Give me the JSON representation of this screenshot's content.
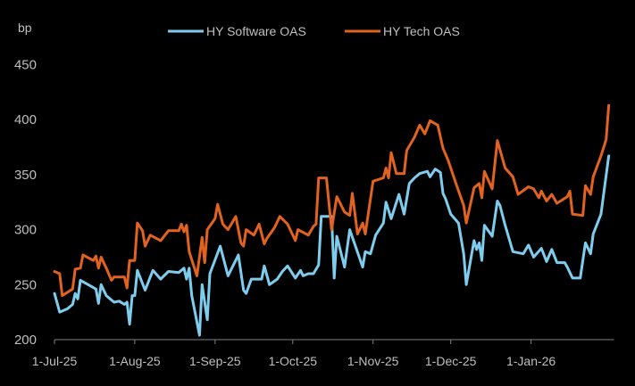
{
  "chart_data": {
    "type": "line",
    "title": "",
    "ylabel": "bp",
    "xlabel": "",
    "x_unit": "days since 1-Jul-25",
    "ylim": [
      200,
      450
    ],
    "yticks": [
      200,
      250,
      300,
      350,
      400,
      450
    ],
    "xticks": [
      {
        "day": 0,
        "label": "1-Jul-25"
      },
      {
        "day": 31,
        "label": "1-Aug-25"
      },
      {
        "day": 62,
        "label": "1-Sep-25"
      },
      {
        "day": 92,
        "label": "1-Oct-25"
      },
      {
        "day": 123,
        "label": "1-Nov-25"
      },
      {
        "day": 153,
        "label": "1-Dec-25"
      },
      {
        "day": 184,
        "label": "1-Jan-26"
      }
    ],
    "xlim": [
      0,
      215
    ],
    "grid": false,
    "legend_position": "top-center",
    "series": [
      {
        "name": "HY Software OAS",
        "color": "#7fcdee",
        "points": [
          [
            0,
            242
          ],
          [
            2,
            225
          ],
          [
            5,
            228
          ],
          [
            7,
            232
          ],
          [
            8,
            242
          ],
          [
            9,
            237
          ],
          [
            10,
            254
          ],
          [
            13,
            250
          ],
          [
            16,
            246
          ],
          [
            17,
            233
          ],
          [
            18,
            250
          ],
          [
            20,
            240
          ],
          [
            23,
            234
          ],
          [
            25,
            235
          ],
          [
            27,
            232
          ],
          [
            28,
            234
          ],
          [
            29,
            214
          ],
          [
            30,
            240
          ],
          [
            31,
            240
          ],
          [
            32,
            263
          ],
          [
            35,
            245
          ],
          [
            38,
            263
          ],
          [
            41,
            255
          ],
          [
            44,
            262
          ],
          [
            48,
            261
          ],
          [
            50,
            265
          ],
          [
            51,
            255
          ],
          [
            52,
            265
          ],
          [
            53,
            240
          ],
          [
            56,
            204
          ],
          [
            57,
            250
          ],
          [
            59,
            218
          ],
          [
            60,
            260
          ],
          [
            64,
            285
          ],
          [
            67,
            258
          ],
          [
            71,
            277
          ],
          [
            73,
            245
          ],
          [
            74,
            242
          ],
          [
            76,
            255
          ],
          [
            80,
            255
          ],
          [
            81,
            267
          ],
          [
            83,
            250
          ],
          [
            86,
            255
          ],
          [
            88,
            262
          ],
          [
            90,
            267
          ],
          [
            93,
            256
          ],
          [
            95,
            263
          ],
          [
            96,
            258
          ],
          [
            98,
            260
          ],
          [
            100,
            260
          ],
          [
            102,
            268
          ],
          [
            103,
            312
          ],
          [
            105,
            312
          ],
          [
            107,
            312
          ],
          [
            108,
            256
          ],
          [
            109,
            294
          ],
          [
            112,
            266
          ],
          [
            114,
            300
          ],
          [
            119,
            266
          ],
          [
            120,
            280
          ],
          [
            122,
            278
          ],
          [
            124,
            295
          ],
          [
            127,
            306
          ],
          [
            128,
            325
          ],
          [
            130,
            310
          ],
          [
            133,
            332
          ],
          [
            135,
            314
          ],
          [
            137,
            342
          ],
          [
            139,
            347
          ],
          [
            141,
            351
          ],
          [
            144,
            353
          ],
          [
            145,
            348
          ],
          [
            147,
            355
          ],
          [
            149,
            352
          ],
          [
            150,
            333
          ],
          [
            151,
            328
          ],
          [
            153,
            314
          ],
          [
            156,
            306
          ],
          [
            158,
            278
          ],
          [
            159,
            250
          ],
          [
            162,
            290
          ],
          [
            163,
            282
          ],
          [
            164,
            288
          ],
          [
            165,
            272
          ],
          [
            166,
            304
          ],
          [
            169,
            294
          ],
          [
            171,
            326
          ],
          [
            172,
            322
          ],
          [
            174,
            304
          ],
          [
            177,
            280
          ],
          [
            181,
            278
          ],
          [
            183,
            286
          ],
          [
            185,
            275
          ],
          [
            188,
            283
          ],
          [
            190,
            271
          ],
          [
            192,
            282
          ],
          [
            194,
            270
          ],
          [
            197,
            270
          ],
          [
            198,
            266
          ],
          [
            200,
            256
          ],
          [
            203,
            256
          ],
          [
            205,
            288
          ],
          [
            207,
            278
          ],
          [
            208,
            296
          ],
          [
            211,
            314
          ],
          [
            214,
            367
          ]
        ]
      },
      {
        "name": "HY Tech OAS",
        "color": "#e2621f",
        "points": [
          [
            0,
            262
          ],
          [
            2,
            260
          ],
          [
            3,
            240
          ],
          [
            7,
            246
          ],
          [
            8,
            264
          ],
          [
            10,
            265
          ],
          [
            11,
            277
          ],
          [
            15,
            272
          ],
          [
            16,
            276
          ],
          [
            17,
            265
          ],
          [
            18,
            275
          ],
          [
            20,
            265
          ],
          [
            22,
            254
          ],
          [
            23,
            257
          ],
          [
            27,
            257
          ],
          [
            28,
            247
          ],
          [
            29,
            272
          ],
          [
            31,
            272
          ],
          [
            32,
            306
          ],
          [
            34,
            299
          ],
          [
            35,
            285
          ],
          [
            37,
            295
          ],
          [
            41,
            290
          ],
          [
            44,
            299
          ],
          [
            48,
            299
          ],
          [
            49,
            305
          ],
          [
            50,
            298
          ],
          [
            51,
            304
          ],
          [
            52,
            280
          ],
          [
            55,
            258
          ],
          [
            57,
            293
          ],
          [
            58,
            270
          ],
          [
            59,
            300
          ],
          [
            62,
            310
          ],
          [
            63,
            323
          ],
          [
            65,
            305
          ],
          [
            67,
            300
          ],
          [
            70,
            312
          ],
          [
            72,
            288
          ],
          [
            73,
            285
          ],
          [
            74,
            300
          ],
          [
            77,
            295
          ],
          [
            79,
            305
          ],
          [
            81,
            287
          ],
          [
            82,
            292
          ],
          [
            85,
            302
          ],
          [
            87,
            312
          ],
          [
            90,
            305
          ],
          [
            93,
            290
          ],
          [
            94,
            300
          ],
          [
            98,
            295
          ],
          [
            100,
            303
          ],
          [
            101,
            305
          ],
          [
            102,
            347
          ],
          [
            105,
            347
          ],
          [
            107,
            300
          ],
          [
            109,
            330
          ],
          [
            112,
            316
          ],
          [
            114,
            313
          ],
          [
            115,
            333
          ],
          [
            117,
            296
          ],
          [
            119,
            306
          ],
          [
            120,
            296
          ],
          [
            123,
            344
          ],
          [
            127,
            347
          ],
          [
            128,
            356
          ],
          [
            129,
            347
          ],
          [
            130,
            370
          ],
          [
            132,
            351
          ],
          [
            135,
            351
          ],
          [
            136,
            372
          ],
          [
            139,
            384
          ],
          [
            141,
            395
          ],
          [
            143,
            387
          ],
          [
            145,
            399
          ],
          [
            148,
            395
          ],
          [
            150,
            374
          ],
          [
            152,
            363
          ],
          [
            155,
            342
          ],
          [
            158,
            322
          ],
          [
            159,
            306
          ],
          [
            162,
            338
          ],
          [
            164,
            342
          ],
          [
            165,
            329
          ],
          [
            166,
            353
          ],
          [
            169,
            337
          ],
          [
            171,
            381
          ],
          [
            174,
            356
          ],
          [
            177,
            348
          ],
          [
            179,
            332
          ],
          [
            183,
            339
          ],
          [
            185,
            337
          ],
          [
            187,
            329
          ],
          [
            188,
            335
          ],
          [
            190,
            326
          ],
          [
            192,
            332
          ],
          [
            194,
            324
          ],
          [
            198,
            330
          ],
          [
            199,
            335
          ],
          [
            200,
            314
          ],
          [
            204,
            313
          ],
          [
            205,
            340
          ],
          [
            207,
            332
          ],
          [
            208,
            348
          ],
          [
            211,
            367
          ],
          [
            213,
            382
          ],
          [
            214,
            413
          ]
        ]
      }
    ]
  }
}
